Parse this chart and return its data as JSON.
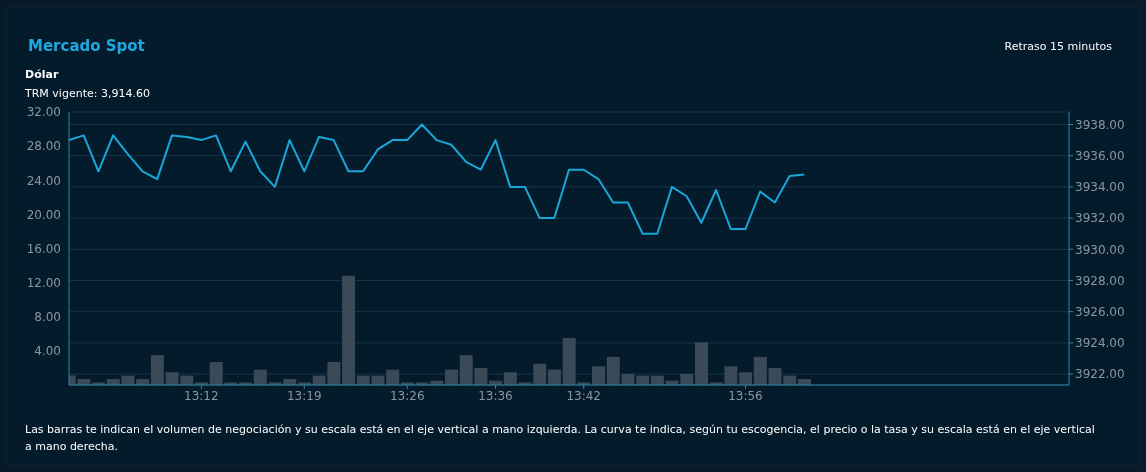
{
  "chart_data": {
    "type": "bar",
    "title": "Mercado Spot",
    "subtitle": "Dólar",
    "annotations": [
      "Retraso 15 minutos",
      "TRM vigente: 3,914.60",
      "Las barras te indican el volumen de negociación y su escala está en el eje vertical a mano izquierda. La curva te indica, según tu escogencia, el precio o la tasa y su escala está en el eje vertical a mano derecha."
    ],
    "categories": [
      null,
      null,
      null,
      null,
      null,
      null,
      null,
      null,
      null,
      "13:12",
      null,
      null,
      null,
      null,
      null,
      null,
      "13:19",
      null,
      null,
      null,
      null,
      null,
      null,
      "13:26",
      null,
      null,
      null,
      null,
      null,
      "13:36",
      null,
      null,
      null,
      null,
      null,
      "13:42",
      null,
      null,
      null,
      null,
      null,
      null,
      null,
      null,
      null,
      null,
      "13:56",
      null,
      null,
      null,
      null,
      null,
      null,
      null,
      null,
      null,
      null,
      null,
      null,
      null,
      null,
      null,
      null,
      null,
      null,
      null,
      null,
      null,
      null
    ],
    "series": [
      {
        "color": "#3a4a57",
        "values": [
          1.1,
          0.7,
          0.3,
          0.7,
          1.1,
          0.7,
          3.5,
          1.5,
          1.1,
          0.3,
          2.7,
          0.3,
          0.3,
          1.8,
          0.3,
          0.7,
          0.3,
          1.1,
          2.7,
          12.8,
          1.1,
          1.1,
          1.8,
          0.3,
          0.3,
          0.5,
          1.8,
          3.5,
          2.0,
          0.5,
          1.5,
          0.3,
          2.5,
          1.8,
          5.5,
          0.3,
          2.2,
          3.3,
          1.3,
          1.1,
          1.1,
          0.5,
          1.3,
          5.0,
          0.3,
          2.2,
          1.5,
          3.3,
          2.0,
          1.1,
          0.7,
          null,
          null,
          null,
          null,
          null,
          null,
          null,
          null,
          null,
          null,
          null,
          null,
          null,
          null,
          null,
          null,
          null,
          null
        ]
      },
      {
        "type": "line",
        "axis": "y2",
        "color": "#1aa7d8",
        "values": [
          3937.0,
          3937.3,
          3935.0,
          3937.3,
          3936.1,
          3935.0,
          3934.5,
          3937.3,
          3937.2,
          3937.0,
          3937.3,
          3935.0,
          3936.9,
          3935.0,
          3934.0,
          3937.0,
          3935.0,
          3937.2,
          3937.0,
          3935.0,
          3935.0,
          3936.4,
          3937.0,
          3937.0,
          3938.0,
          3937.0,
          3936.7,
          3935.6,
          3935.1,
          3937.0,
          3934.0,
          3934.0,
          3932.0,
          3932.0,
          3935.1,
          3935.1,
          3934.5,
          3933.0,
          3933.0,
          3931.0,
          3931.0,
          3934.0,
          3933.4,
          3931.7,
          3933.8,
          3931.3,
          3931.3,
          3933.7,
          3933.0,
          3934.7,
          3934.8,
          null,
          null,
          null,
          null,
          null,
          null,
          null,
          null,
          null,
          null,
          null,
          null,
          null,
          null,
          null,
          null,
          null,
          null
        ]
      }
    ],
    "ylim": [
      0,
      32
    ],
    "yticks": [
      {
        "value": 4,
        "label": "4.00"
      },
      {
        "value": 8,
        "label": "8.00"
      },
      {
        "value": 12,
        "label": "12.00"
      },
      {
        "value": 16,
        "label": "16.00"
      },
      {
        "value": 20,
        "label": "20.00"
      },
      {
        "value": 24,
        "label": "24.00"
      },
      {
        "value": 28,
        "label": "28.00"
      },
      {
        "value": 32,
        "label": "32.00"
      }
    ],
    "y2lim": [
      3921.3,
      3938.8
    ],
    "y2ticks": [
      {
        "value": 3922,
        "label": "3922.00"
      },
      {
        "value": 3924,
        "label": "3924.00"
      },
      {
        "value": 3926,
        "label": "3926.00"
      },
      {
        "value": 3928,
        "label": "3928.00"
      },
      {
        "value": 3930,
        "label": "3930.00"
      },
      {
        "value": 3932,
        "label": "3932.00"
      },
      {
        "value": 3934,
        "label": "3934.00"
      },
      {
        "value": 3936,
        "label": "3936.00"
      },
      {
        "value": 3938,
        "label": "3938.00"
      }
    ],
    "grid": "y2",
    "marker": "none",
    "line_style": "solid"
  }
}
